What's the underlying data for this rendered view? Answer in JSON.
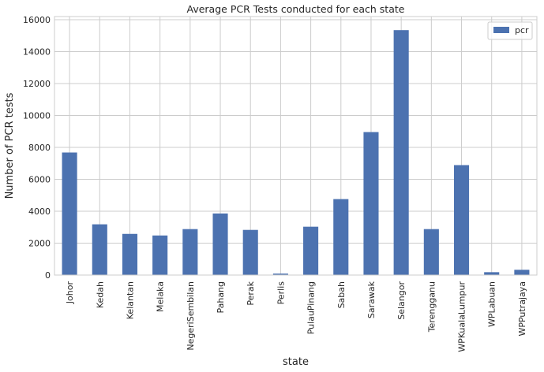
{
  "chart_data": {
    "type": "bar",
    "title": "Average PCR Tests conducted for each state",
    "xlabel": "state",
    "ylabel": "Number of PCR tests",
    "categories": [
      "Johor",
      "Kedah",
      "Kelantan",
      "Melaka",
      "NegeriSembilan",
      "Pahang",
      "Perak",
      "Perlis",
      "PulauPinang",
      "Sabah",
      "Sarawak",
      "Selangor",
      "Terengganu",
      "WPKualaLumpur",
      "WPLabuan",
      "WPPutrajaya"
    ],
    "series": [
      {
        "name": "pcr",
        "values": [
          7680,
          3180,
          2580,
          2480,
          2880,
          3860,
          2830,
          90,
          3030,
          4760,
          8960,
          15350,
          2880,
          6890,
          180,
          330
        ]
      }
    ],
    "ylim": [
      0,
      16200
    ],
    "yticks": [
      0,
      2000,
      4000,
      6000,
      8000,
      10000,
      12000,
      14000,
      16000
    ],
    "grid": true,
    "legend_position": "top-right",
    "colors": {
      "bar": "#4c72b0",
      "grid": "#cccccc",
      "background": "#ffffff",
      "text": "#262626"
    }
  }
}
